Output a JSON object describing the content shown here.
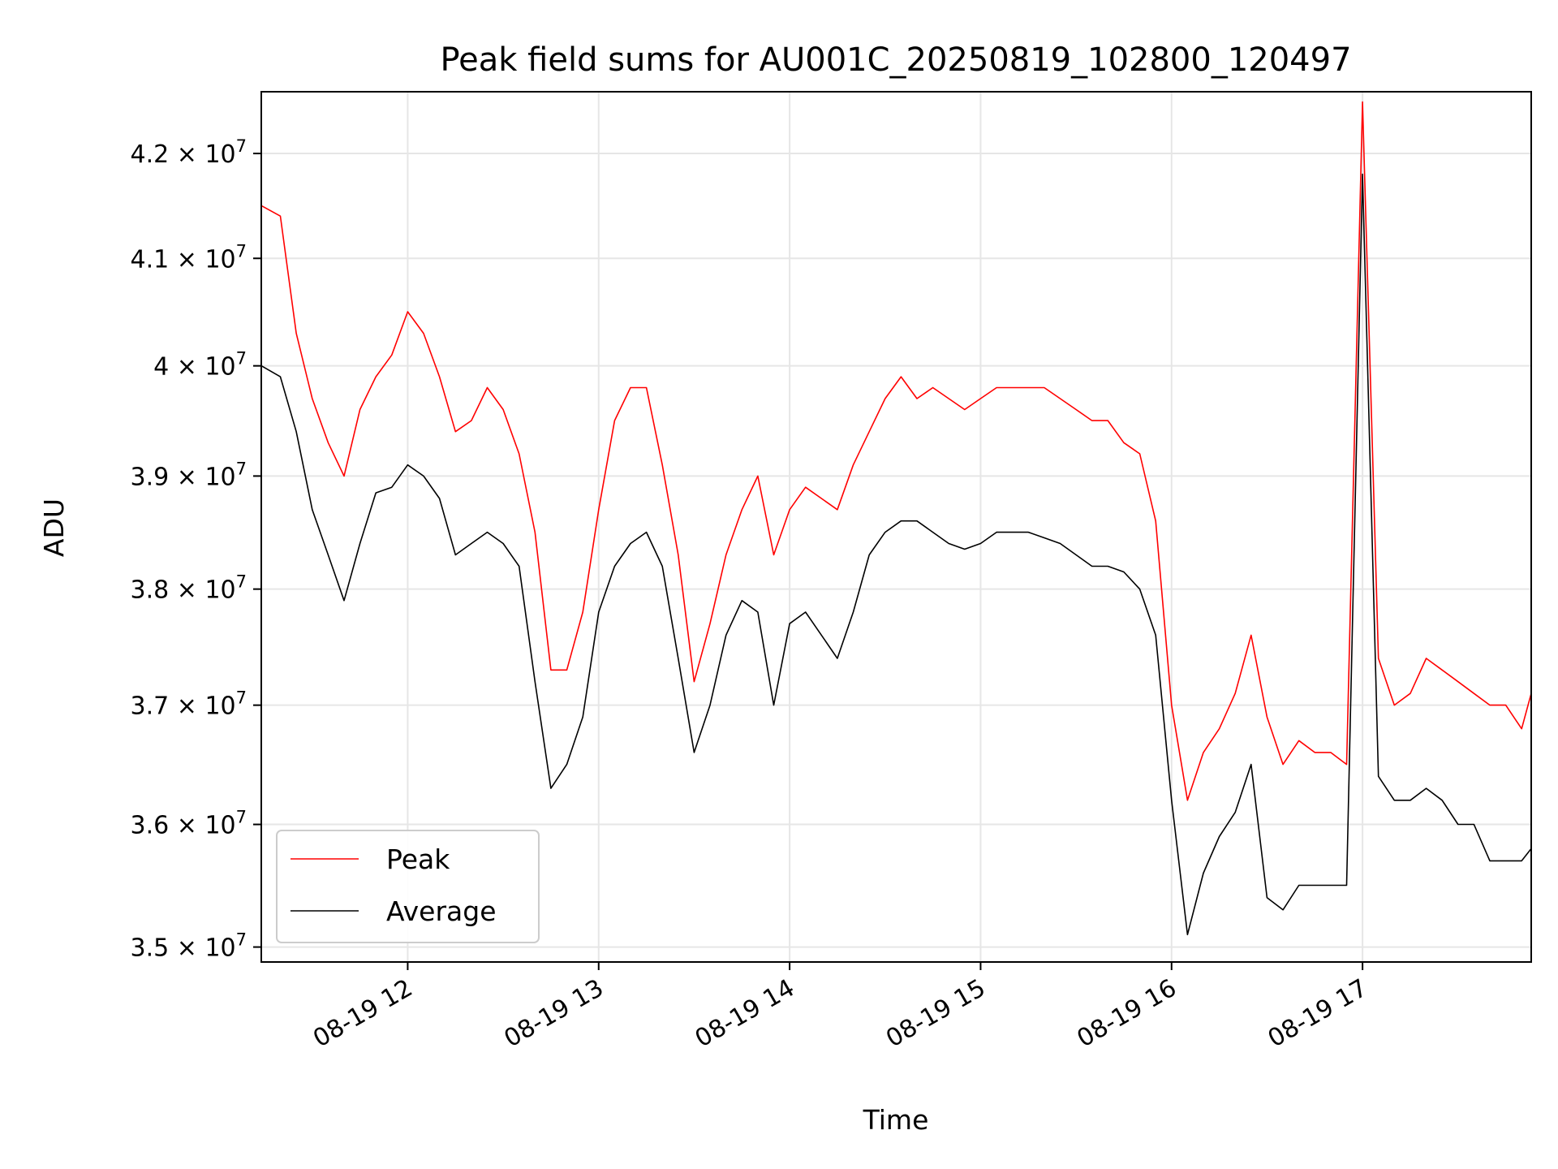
{
  "chart_data": {
    "type": "line",
    "title": "Peak field sums for AU001C_20250819_102800_120497",
    "xlabel": "Time",
    "ylabel": "ADU",
    "y_scale": "log",
    "grid": true,
    "legend_position": "lower-left",
    "xlim": [
      "2025-08-19T11:14",
      "2025-08-19T17:53"
    ],
    "ylim": [
      34880000,
      42600000
    ],
    "x_ticks": [
      "2025-08-19T12:00",
      "2025-08-19T13:00",
      "2025-08-19T14:00",
      "2025-08-19T15:00",
      "2025-08-19T16:00",
      "2025-08-19T17:00"
    ],
    "x_tick_labels": [
      "08-19 12",
      "08-19 13",
      "08-19 14",
      "08-19 15",
      "08-19 16",
      "08-19 17"
    ],
    "y_ticks": [
      35000000,
      36000000,
      37000000,
      38000000,
      39000000,
      40000000,
      41000000,
      42000000
    ],
    "y_tick_mantissas": [
      "3.5",
      "3.6",
      "3.7",
      "3.8",
      "3.9",
      "4",
      "4.1",
      "4.2"
    ],
    "y_tick_base": "× 10",
    "y_tick_exponent": "7",
    "series": [
      {
        "name": "Peak",
        "color": "#ff0000",
        "x": [
          "2025-08-19T11:14",
          "2025-08-19T11:20",
          "2025-08-19T11:25",
          "2025-08-19T11:30",
          "2025-08-19T11:35",
          "2025-08-19T11:40",
          "2025-08-19T11:45",
          "2025-08-19T11:50",
          "2025-08-19T11:55",
          "2025-08-19T12:00",
          "2025-08-19T12:05",
          "2025-08-19T12:10",
          "2025-08-19T12:15",
          "2025-08-19T12:20",
          "2025-08-19T12:25",
          "2025-08-19T12:30",
          "2025-08-19T12:35",
          "2025-08-19T12:40",
          "2025-08-19T12:45",
          "2025-08-19T12:50",
          "2025-08-19T12:55",
          "2025-08-19T13:00",
          "2025-08-19T13:05",
          "2025-08-19T13:10",
          "2025-08-19T13:15",
          "2025-08-19T13:20",
          "2025-08-19T13:25",
          "2025-08-19T13:30",
          "2025-08-19T13:35",
          "2025-08-19T13:40",
          "2025-08-19T13:45",
          "2025-08-19T13:50",
          "2025-08-19T13:55",
          "2025-08-19T14:00",
          "2025-08-19T14:05",
          "2025-08-19T14:10",
          "2025-08-19T14:15",
          "2025-08-19T14:20",
          "2025-08-19T14:25",
          "2025-08-19T14:30",
          "2025-08-19T14:35",
          "2025-08-19T14:40",
          "2025-08-19T14:45",
          "2025-08-19T14:50",
          "2025-08-19T14:55",
          "2025-08-19T15:00",
          "2025-08-19T15:05",
          "2025-08-19T15:10",
          "2025-08-19T15:15",
          "2025-08-19T15:20",
          "2025-08-19T15:25",
          "2025-08-19T15:30",
          "2025-08-19T15:35",
          "2025-08-19T15:40",
          "2025-08-19T15:45",
          "2025-08-19T15:50",
          "2025-08-19T15:55",
          "2025-08-19T16:00",
          "2025-08-19T16:05",
          "2025-08-19T16:10",
          "2025-08-19T16:15",
          "2025-08-19T16:20",
          "2025-08-19T16:25",
          "2025-08-19T16:30",
          "2025-08-19T16:35",
          "2025-08-19T16:40",
          "2025-08-19T16:45",
          "2025-08-19T16:50",
          "2025-08-19T16:55",
          "2025-08-19T17:00",
          "2025-08-19T17:05",
          "2025-08-19T17:10",
          "2025-08-19T17:15",
          "2025-08-19T17:20",
          "2025-08-19T17:25",
          "2025-08-19T17:30",
          "2025-08-19T17:35",
          "2025-08-19T17:40",
          "2025-08-19T17:45",
          "2025-08-19T17:50",
          "2025-08-19T17:53"
        ],
        "values": [
          41500000,
          41400000,
          40300000,
          39700000,
          39300000,
          39000000,
          39600000,
          39900000,
          40100000,
          40500000,
          40300000,
          39900000,
          39400000,
          39500000,
          39800000,
          39600000,
          39200000,
          38500000,
          37300000,
          37300000,
          37800000,
          38700000,
          39500000,
          39800000,
          39800000,
          39100000,
          38300000,
          37200000,
          37700000,
          38300000,
          38700000,
          39000000,
          38300000,
          38700000,
          38900000,
          38800000,
          38700000,
          39100000,
          39400000,
          39700000,
          39900000,
          39700000,
          39800000,
          39700000,
          39600000,
          39700000,
          39800000,
          39800000,
          39800000,
          39800000,
          39700000,
          39600000,
          39500000,
          39500000,
          39300000,
          39200000,
          38600000,
          37000000,
          36200000,
          36600000,
          36800000,
          37100000,
          37600000,
          36900000,
          36500000,
          36700000,
          36600000,
          36600000,
          36500000,
          42500000,
          37400000,
          37000000,
          37100000,
          37400000,
          37300000,
          37200000,
          37100000,
          37000000,
          37000000,
          36800000,
          37100000
        ]
      },
      {
        "name": "Average",
        "color": "#000000",
        "x": [
          "2025-08-19T11:14",
          "2025-08-19T11:20",
          "2025-08-19T11:25",
          "2025-08-19T11:30",
          "2025-08-19T11:35",
          "2025-08-19T11:40",
          "2025-08-19T11:45",
          "2025-08-19T11:50",
          "2025-08-19T11:55",
          "2025-08-19T12:00",
          "2025-08-19T12:05",
          "2025-08-19T12:10",
          "2025-08-19T12:15",
          "2025-08-19T12:20",
          "2025-08-19T12:25",
          "2025-08-19T12:30",
          "2025-08-19T12:35",
          "2025-08-19T12:40",
          "2025-08-19T12:45",
          "2025-08-19T12:50",
          "2025-08-19T12:55",
          "2025-08-19T13:00",
          "2025-08-19T13:05",
          "2025-08-19T13:10",
          "2025-08-19T13:15",
          "2025-08-19T13:20",
          "2025-08-19T13:25",
          "2025-08-19T13:30",
          "2025-08-19T13:35",
          "2025-08-19T13:40",
          "2025-08-19T13:45",
          "2025-08-19T13:50",
          "2025-08-19T13:55",
          "2025-08-19T14:00",
          "2025-08-19T14:05",
          "2025-08-19T14:10",
          "2025-08-19T14:15",
          "2025-08-19T14:20",
          "2025-08-19T14:25",
          "2025-08-19T14:30",
          "2025-08-19T14:35",
          "2025-08-19T14:40",
          "2025-08-19T14:45",
          "2025-08-19T14:50",
          "2025-08-19T14:55",
          "2025-08-19T15:00",
          "2025-08-19T15:05",
          "2025-08-19T15:10",
          "2025-08-19T15:15",
          "2025-08-19T15:20",
          "2025-08-19T15:25",
          "2025-08-19T15:30",
          "2025-08-19T15:35",
          "2025-08-19T15:40",
          "2025-08-19T15:45",
          "2025-08-19T15:50",
          "2025-08-19T15:55",
          "2025-08-19T16:00",
          "2025-08-19T16:05",
          "2025-08-19T16:10",
          "2025-08-19T16:15",
          "2025-08-19T16:20",
          "2025-08-19T16:25",
          "2025-08-19T16:30",
          "2025-08-19T16:35",
          "2025-08-19T16:40",
          "2025-08-19T16:45",
          "2025-08-19T16:50",
          "2025-08-19T16:55",
          "2025-08-19T17:00",
          "2025-08-19T17:05",
          "2025-08-19T17:10",
          "2025-08-19T17:15",
          "2025-08-19T17:20",
          "2025-08-19T17:25",
          "2025-08-19T17:30",
          "2025-08-19T17:35",
          "2025-08-19T17:40",
          "2025-08-19T17:45",
          "2025-08-19T17:50",
          "2025-08-19T17:53"
        ],
        "values": [
          40000000,
          39900000,
          39400000,
          38700000,
          38300000,
          37900000,
          38400000,
          38850000,
          38900000,
          39100000,
          39000000,
          38800000,
          38300000,
          38400000,
          38500000,
          38400000,
          38200000,
          37200000,
          36300000,
          36500000,
          36900000,
          37800000,
          38200000,
          38400000,
          38500000,
          38200000,
          37400000,
          36600000,
          37000000,
          37600000,
          37900000,
          37800000,
          37000000,
          37700000,
          37800000,
          37600000,
          37400000,
          37800000,
          38300000,
          38500000,
          38600000,
          38600000,
          38500000,
          38400000,
          38350000,
          38400000,
          38500000,
          38500000,
          38500000,
          38450000,
          38400000,
          38300000,
          38200000,
          38200000,
          38150000,
          38000000,
          37600000,
          36200000,
          35100000,
          35600000,
          35900000,
          36100000,
          36500000,
          35400000,
          35300000,
          35500000,
          35500000,
          35500000,
          35500000,
          41800000,
          36400000,
          36200000,
          36200000,
          36300000,
          36200000,
          36000000,
          36000000,
          35700000,
          35700000,
          35700000,
          35800000
        ]
      }
    ]
  }
}
